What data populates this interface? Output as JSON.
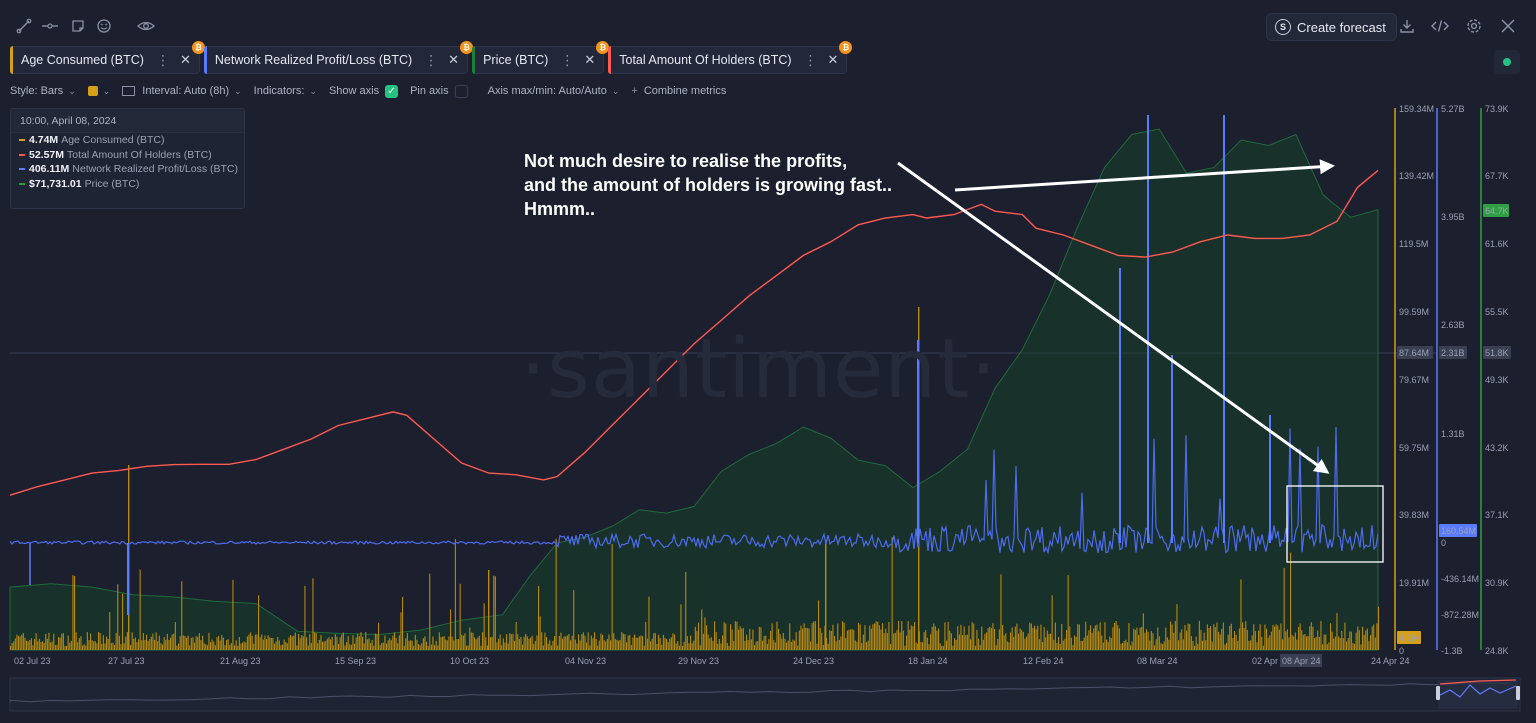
{
  "toolbar": {
    "icons": [
      "line-draw-icon",
      "segment-icon",
      "note-icon",
      "emoji-icon",
      "eye-icon"
    ],
    "right_icons": [
      "download-icon",
      "embed-code-icon",
      "settings-icon",
      "close-icon"
    ],
    "forecast_label": "Create forecast"
  },
  "metrics": [
    {
      "label": "Age Consumed (BTC)",
      "color": "#d4a017"
    },
    {
      "label": "Network Realized Profit/Loss (BTC)",
      "color": "#5b7bff"
    },
    {
      "label": "Price (BTC)",
      "color": "#1e7d3a"
    },
    {
      "label": "Total Amount Of Holders (BTC)",
      "color": "#ff5a52"
    }
  ],
  "options": {
    "style": "Style: Bars",
    "interval": "Interval: Auto (8h)",
    "indicators": "Indicators:",
    "show_axis": "Show axis",
    "pin_axis": "Pin axis",
    "axis_minmax": "Axis max/min: Auto/Auto",
    "combine": "Combine metrics"
  },
  "legend": {
    "date": "10:00, April 08, 2024",
    "rows": [
      {
        "value": "4.74M",
        "name": "Age Consumed (BTC)",
        "color": "#d4a017"
      },
      {
        "value": "52.57M",
        "name": "Total Amount Of Holders (BTC)",
        "color": "#ff5a52"
      },
      {
        "value": "406.11M",
        "name": "Network Realized Profit/Loss (BTC)",
        "color": "#5b7bff"
      },
      {
        "value": "$71,731.01",
        "name": "Price (BTC)",
        "color": "#2ea043"
      }
    ]
  },
  "annotation": {
    "lines": [
      "Not much desire to realise the profits,",
      "and the amount of holders is growing fast..",
      "Hmmm.."
    ]
  },
  "watermark": "·santiment·",
  "chart_data": {
    "type": "line",
    "x_ticks": [
      "02 Jul 23",
      "27 Jul 23",
      "21 Aug 23",
      "15 Sep 23",
      "10 Oct 23",
      "04 Nov 23",
      "29 Nov 23",
      "24 Dec 23",
      "18 Jan 24",
      "12 Feb 24",
      "08 Mar 24",
      "02 Apr",
      "08 Apr 24",
      "24 Apr 24"
    ],
    "axes": {
      "age_consumed": {
        "ticks": [
          "159.34M",
          "139.42M",
          "119.5M",
          "99.59M",
          "79.67M",
          "59.75M",
          "39.83M",
          "19.91M",
          "0"
        ],
        "marker": "87.64M",
        "current": "4.1M",
        "color": "#d4a017"
      },
      "network_pl": {
        "ticks": [
          "5.27B",
          "3.95B",
          "2.63B",
          "1.31B",
          "0",
          "-436.14M",
          "-872.28M",
          "-1.3B"
        ],
        "marker": "2.31B",
        "current": "160.54M",
        "color": "#5b7bff"
      },
      "price": {
        "ticks": [
          "73.9K",
          "67.7K",
          "61.6K",
          "55.5K",
          "49.3K",
          "43.2K",
          "37.1K",
          "30.9K",
          "24.8K"
        ],
        "marker": "51.8K",
        "current": "64.7K",
        "color": "#2ea043"
      }
    },
    "series": [
      {
        "name": "Total Amount Of Holders (BTC)",
        "points": [
          [
            0,
            45.5
          ],
          [
            0.02,
            48
          ],
          [
            0.04,
            50
          ],
          [
            0.06,
            52
          ],
          [
            0.08,
            52.8
          ],
          [
            0.1,
            54
          ],
          [
            0.12,
            54.5
          ],
          [
            0.14,
            54.6
          ],
          [
            0.16,
            54.6
          ],
          [
            0.18,
            56
          ],
          [
            0.2,
            59
          ],
          [
            0.22,
            62
          ],
          [
            0.24,
            66
          ],
          [
            0.26,
            68
          ],
          [
            0.28,
            70
          ],
          [
            0.29,
            69
          ],
          [
            0.31,
            62
          ],
          [
            0.33,
            55
          ],
          [
            0.35,
            52
          ],
          [
            0.37,
            51.5
          ],
          [
            0.39,
            50
          ],
          [
            0.4,
            51
          ],
          [
            0.42,
            58
          ],
          [
            0.44,
            66
          ],
          [
            0.46,
            74
          ],
          [
            0.48,
            82
          ],
          [
            0.5,
            90
          ],
          [
            0.52,
            97
          ],
          [
            0.54,
            104
          ],
          [
            0.56,
            110
          ],
          [
            0.58,
            116
          ],
          [
            0.6,
            120
          ],
          [
            0.62,
            125
          ],
          [
            0.64,
            127
          ],
          [
            0.66,
            128
          ],
          [
            0.67,
            127
          ],
          [
            0.69,
            128
          ],
          [
            0.71,
            131
          ],
          [
            0.72,
            129
          ],
          [
            0.74,
            128
          ],
          [
            0.75,
            124
          ],
          [
            0.77,
            122
          ],
          [
            0.79,
            119
          ],
          [
            0.81,
            116
          ],
          [
            0.83,
            115.5
          ],
          [
            0.85,
            117
          ],
          [
            0.87,
            120
          ],
          [
            0.89,
            122
          ],
          [
            0.91,
            121
          ],
          [
            0.93,
            121
          ],
          [
            0.95,
            122
          ],
          [
            0.97,
            126
          ],
          [
            0.985,
            136
          ],
          [
            1,
            141
          ]
        ]
      },
      {
        "name": "Network Realized Profit/Loss (BTC)",
        "baseline_b": 0
      },
      {
        "name": "Price (BTC)",
        "points": [
          [
            0,
            30.5
          ],
          [
            0.03,
            30.8
          ],
          [
            0.06,
            30.5
          ],
          [
            0.09,
            29.8
          ],
          [
            0.12,
            29.6
          ],
          [
            0.15,
            29.2
          ],
          [
            0.18,
            29.0
          ],
          [
            0.21,
            26.5
          ],
          [
            0.24,
            26.3
          ],
          [
            0.27,
            26.2
          ],
          [
            0.3,
            26.6
          ],
          [
            0.33,
            27.5
          ],
          [
            0.36,
            28.0
          ],
          [
            0.38,
            31.5
          ],
          [
            0.4,
            34.5
          ],
          [
            0.42,
            35.0
          ],
          [
            0.44,
            36.0
          ],
          [
            0.46,
            37.5
          ],
          [
            0.48,
            37.2
          ],
          [
            0.5,
            37.8
          ],
          [
            0.52,
            41.0
          ],
          [
            0.54,
            42.5
          ],
          [
            0.56,
            43.5
          ],
          [
            0.58,
            45.0
          ],
          [
            0.6,
            44.0
          ],
          [
            0.62,
            42.0
          ],
          [
            0.64,
            41.5
          ],
          [
            0.66,
            39.5
          ],
          [
            0.68,
            41.0
          ],
          [
            0.7,
            43.0
          ],
          [
            0.72,
            48.5
          ],
          [
            0.74,
            52.0
          ],
          [
            0.76,
            57.0
          ],
          [
            0.78,
            63.0
          ],
          [
            0.8,
            68.5
          ],
          [
            0.82,
            71.5
          ],
          [
            0.84,
            72.0
          ],
          [
            0.86,
            68.0
          ],
          [
            0.88,
            68.5
          ],
          [
            0.9,
            71.0
          ],
          [
            0.92,
            70.5
          ],
          [
            0.94,
            71.5
          ],
          [
            0.96,
            66.0
          ],
          [
            0.98,
            64.0
          ],
          [
            1,
            64.7
          ]
        ]
      }
    ]
  }
}
